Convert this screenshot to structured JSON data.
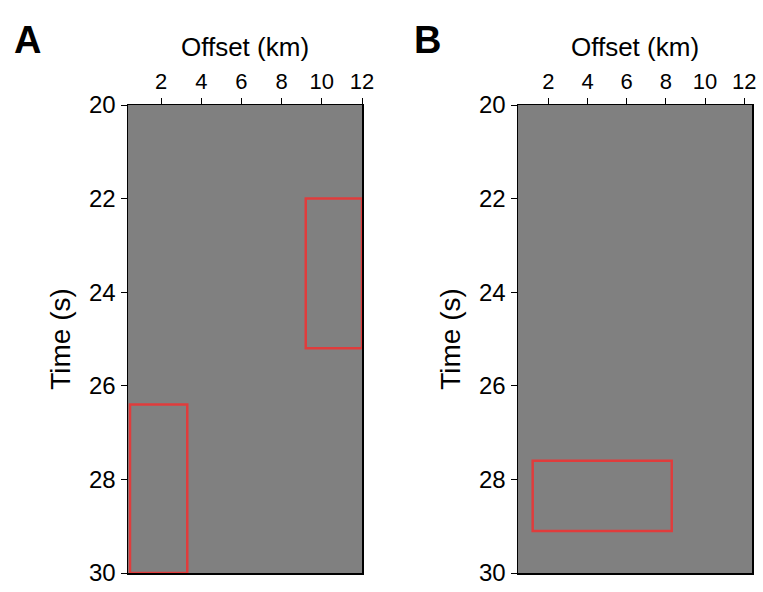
{
  "chart_data": [
    {
      "type": "seismic_image",
      "title": "A",
      "xlabel": "Offset (km)",
      "ylabel": "Time (s)",
      "xlim": [
        0.35,
        12
      ],
      "xticks": [
        2,
        4,
        6,
        8,
        10,
        12
      ],
      "ylim": [
        20,
        30
      ],
      "yticks": [
        20,
        22,
        24,
        26,
        28,
        30
      ],
      "color": "#808080",
      "boxes": [
        {
          "x": [
            0.45,
            3.3
          ],
          "y": [
            26.4,
            30
          ],
          "color": "#e03c3c"
        },
        {
          "x": [
            9.2,
            12
          ],
          "y": [
            22.0,
            25.2
          ],
          "color": "#e03c3c"
        }
      ]
    },
    {
      "type": "seismic_image",
      "title": "B",
      "xlabel": "Offset (km)",
      "ylabel": "Time (s)",
      "xlim": [
        0.45,
        12.4
      ],
      "xticks": [
        2,
        4,
        6,
        8,
        10,
        12
      ],
      "ylim": [
        20,
        30
      ],
      "yticks": [
        20,
        22,
        24,
        26,
        28,
        30
      ],
      "color": "#808080",
      "boxes": [
        {
          "x": [
            1.2,
            8.3
          ],
          "y": [
            27.6,
            29.1
          ],
          "color": "#e03c3c"
        }
      ]
    }
  ]
}
